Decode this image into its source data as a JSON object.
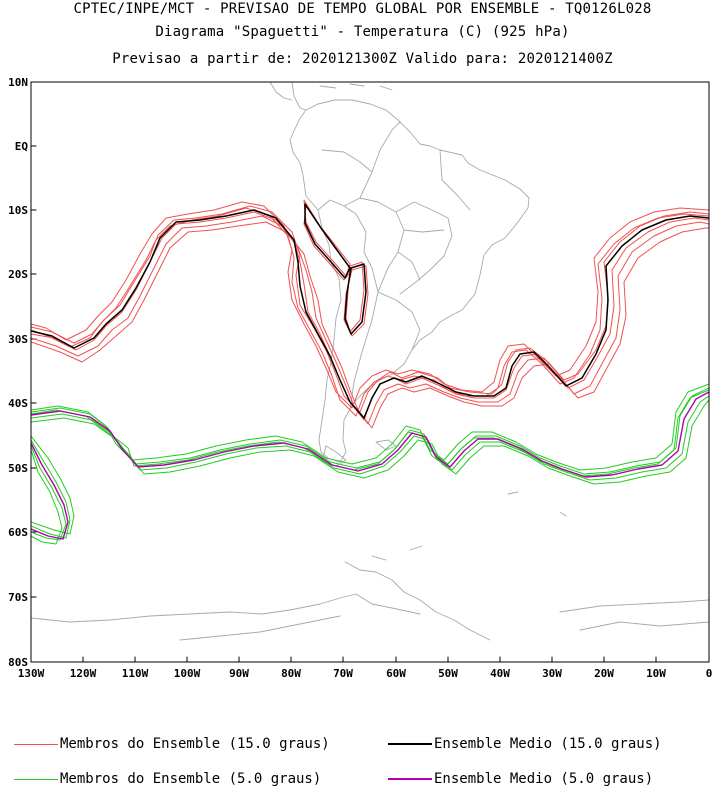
{
  "header": {
    "line1": "CPTEC/INPE/MCT - PREVISAO DE TEMPO GLOBAL POR ENSEMBLE - TQ0126L028",
    "line2": "Diagrama \"Spaguetti\" - Temperatura (C) (925 hPa)",
    "line3": "Previsao a partir de: 2020121300Z  Valido para: 2020121400Z"
  },
  "axes": {
    "lat_labels": [
      "10N",
      "EQ",
      "10S",
      "20S",
      "30S",
      "40S",
      "50S",
      "60S",
      "70S",
      "80S"
    ],
    "lon_labels": [
      "130W",
      "120W",
      "110W",
      "100W",
      "90W",
      "80W",
      "70W",
      "60W",
      "50W",
      "40W",
      "30W",
      "20W",
      "10W",
      "0"
    ],
    "lat_range": [
      -80,
      10
    ],
    "lon_range": [
      -130,
      0
    ]
  },
  "legend": {
    "members_15": "Membros do Ensemble (15.0 graus)",
    "mean_15": "Ensemble Medio (15.0 graus)",
    "members_5": "Membros do Ensemble (5.0 graus)",
    "mean_5": "Ensemble Medio (5.0 graus)"
  },
  "colors": {
    "members_15": "#f25050",
    "mean_15": "#000000",
    "members_5": "#22cc22",
    "mean_5": "#b000b0",
    "coastline": "#a9a9a9"
  }
}
